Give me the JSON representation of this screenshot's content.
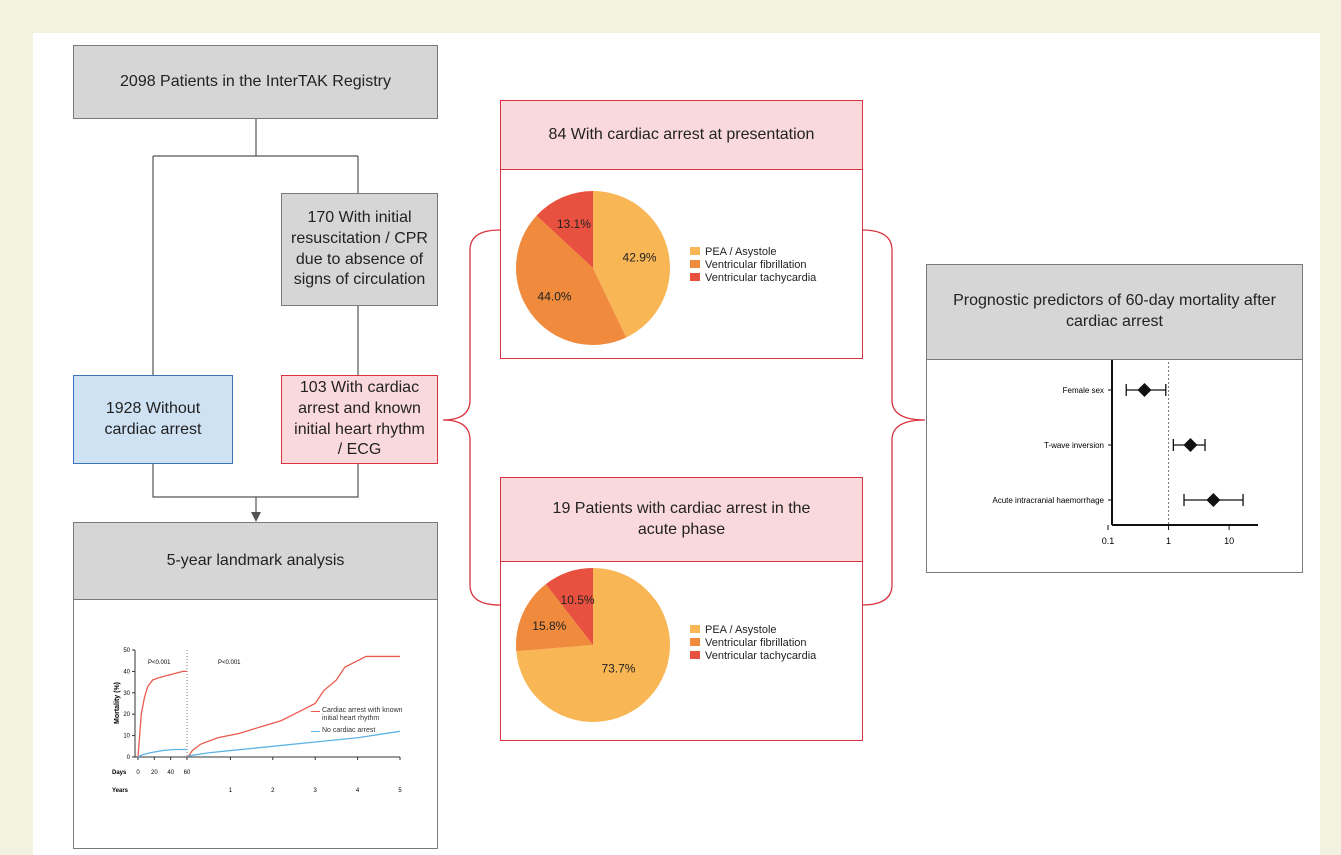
{
  "registry": "2098 Patients in the InterTAK Registry",
  "cpr": "170 With initial resuscitation / CPR due to absence of signs of circulation",
  "no_arrest": "1928 Without cardiac arrest",
  "arrest": "103 With cardiac arrest and known initial heart rhythm / ECG",
  "presentation": {
    "title": "84 With cardiac arrest at presentation",
    "chart": {
      "type": "pie",
      "categories": [
        "PEA / Asystole",
        "Ventricular fibrillation",
        "Ventricular tachycardia"
      ],
      "values": [
        42.9,
        44.0,
        13.1
      ],
      "value_labels": [
        "42.9%",
        "44.0%",
        "13.1%"
      ],
      "colors": [
        "#f9b655",
        "#f08a3c",
        "#e8513f"
      ]
    }
  },
  "acute": {
    "title": "19 Patients with cardiac arrest in the acute phase",
    "chart": {
      "type": "pie",
      "categories": [
        "PEA / Asystole",
        "Ventricular fibrillation",
        "Ventricular tachycardia"
      ],
      "values": [
        73.7,
        15.8,
        10.5
      ],
      "value_labels": [
        "73.7%",
        "15.8%",
        "10.5%"
      ],
      "colors": [
        "#f9b655",
        "#f08a3c",
        "#e8513f"
      ]
    }
  },
  "landmark": {
    "title": "5-year landmark analysis",
    "chart": {
      "type": "line",
      "ylabel": "Mortality (%)",
      "ylim": [
        0,
        50
      ],
      "yticks": [
        0,
        10,
        20,
        30,
        40,
        50
      ],
      "days_label": "Days",
      "days_lim": [
        0,
        60
      ],
      "days_ticks": [
        0,
        20,
        40,
        60
      ],
      "years_label": "Years",
      "years_lim": [
        0,
        5
      ],
      "years_ticks": [
        1,
        2,
        3,
        4,
        5
      ],
      "pvalues": [
        "P<0.001",
        "P<0.001"
      ],
      "series": [
        {
          "name": "Cardiac arrest with known initial heart rhythm",
          "color": "#ea5b4f",
          "days_x": [
            0,
            2,
            4,
            8,
            12,
            18,
            25,
            35,
            45,
            55,
            60
          ],
          "days_y": [
            0,
            10,
            20,
            28,
            33,
            36,
            37,
            38,
            39,
            40,
            40
          ],
          "years_x": [
            0,
            0.1,
            0.3,
            0.7,
            1.2,
            1.7,
            2.2,
            2.7,
            3.0,
            3.2,
            3.5,
            3.7,
            4.2,
            5
          ],
          "years_y": [
            0,
            3,
            6,
            9,
            11,
            14,
            17,
            22,
            25,
            31,
            36,
            42,
            47,
            47
          ]
        },
        {
          "name": "No cardiac arrest",
          "color": "#5fb4e4",
          "days_x": [
            0,
            5,
            15,
            30,
            45,
            60
          ],
          "days_y": [
            0,
            1,
            2,
            3,
            3.5,
            3.5
          ],
          "years_x": [
            0,
            0.5,
            1,
            2,
            3,
            4,
            5
          ],
          "years_y": [
            0.5,
            2,
            3,
            5,
            7,
            9,
            12
          ]
        }
      ]
    }
  },
  "predictors": {
    "title": "Prognostic predictors of 60-day mortality after cardiac arrest",
    "chart": {
      "type": "forest",
      "categories": [
        "Female sex",
        "T-wave inversion",
        "Acute intracranial haemorrhage"
      ],
      "values": [
        0.4,
        2.3,
        5.5
      ],
      "lower": [
        0.2,
        1.2,
        1.8
      ],
      "upper": [
        0.9,
        4.0,
        17
      ],
      "xlim": [
        0.1,
        30
      ],
      "xticks": [
        0.1,
        1,
        10
      ],
      "log": true,
      "reference": 1
    }
  }
}
